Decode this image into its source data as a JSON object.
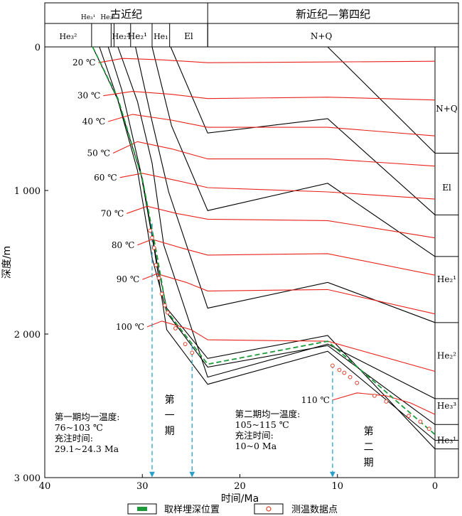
{
  "chart_data": {
    "type": "line",
    "title": "",
    "xlabel": "时间/Ma",
    "ylabel": "深度/m",
    "xlim": [
      40,
      0
    ],
    "ylim": [
      3000,
      0
    ],
    "x_ticks": [
      {
        "v": 40,
        "label": "40"
      },
      {
        "v": 30,
        "label": "30"
      },
      {
        "v": 20,
        "label": "20"
      },
      {
        "v": 10,
        "label": "10"
      },
      {
        "v": 0,
        "label": "0"
      }
    ],
    "y_ticks": [
      {
        "v": 0,
        "label": "0"
      },
      {
        "v": 1000,
        "label": "1 000"
      },
      {
        "v": 2000,
        "label": "2 000"
      },
      {
        "v": 3000,
        "label": "3 000"
      }
    ],
    "periods": [
      {
        "label": "古近纪",
        "x_from": 40,
        "x_to": 23.3
      },
      {
        "label": "新近纪—第四纪",
        "x_from": 23.3,
        "x_to": 0
      }
    ],
    "formations": [
      {
        "label": "He₃¹",
        "x_from": 36.5,
        "x_to": 34.6
      },
      {
        "label": "He₂³",
        "x_from": 33.8,
        "x_to": 33.3
      },
      {
        "label": "He₂¹",
        "x_from": 32.0,
        "x_to": 29.0
      },
      {
        "label": "El",
        "x_from": 27.2,
        "x_to": 23.3
      },
      {
        "label": "N+Q",
        "x_from": 23.3,
        "x_to": 0
      }
    ],
    "formations_sub": [
      {
        "label": "He₃²",
        "x_from": 40,
        "x_to": 35.2
      },
      {
        "label": "He₂²",
        "x_from": 33.2,
        "x_to": 31.2
      },
      {
        "label": "He₁",
        "x_from": 29.0,
        "x_to": 27.2
      }
    ],
    "formation_dividers": [
      40,
      35.2,
      33.2,
      32.9,
      31.2,
      29.0,
      27.2,
      23.3
    ],
    "right_formation_labels": [
      {
        "label": "N+Q",
        "depth": 430
      },
      {
        "label": "El",
        "depth": 980
      },
      {
        "label": "He₂¹",
        "depth": 1620
      },
      {
        "label": "He₂²",
        "depth": 2150
      },
      {
        "label": "He₃³",
        "depth": 2500
      },
      {
        "label": "He₃¹",
        "depth": 2740
      }
    ],
    "burial_curves": [
      {
        "x": [
          35.1,
          32.5,
          30.0,
          28.5,
          27.5,
          23.3,
          11,
          0
        ],
        "y": [
          0,
          370,
          920,
          1500,
          1820,
          2170,
          2010,
          2800
        ]
      },
      {
        "x": [
          34.4,
          32.6,
          30.5,
          29.0,
          27.5,
          23.3,
          11,
          0
        ],
        "y": [
          0,
          350,
          860,
          1470,
          1850,
          2230,
          2080,
          2630
        ]
      },
      {
        "x": [
          33.5,
          32.1,
          30.2,
          28.8,
          27.5,
          23.3,
          11,
          0
        ],
        "y": [
          0,
          300,
          860,
          1400,
          1970,
          2350,
          2120,
          2740
        ]
      },
      {
        "x": [
          32.5,
          30.5,
          29.0,
          27.8,
          23.3,
          11,
          0
        ],
        "y": [
          0,
          380,
          810,
          1380,
          2300,
          2070,
          2450
        ]
      },
      {
        "x": [
          30.7,
          29.0,
          27.3,
          23.3,
          11,
          0
        ],
        "y": [
          0,
          520,
          1010,
          1820,
          1640,
          1920
        ]
      },
      {
        "x": [
          29.0,
          27.0,
          23.3,
          11,
          0
        ],
        "y": [
          0,
          550,
          1140,
          950,
          1460
        ]
      },
      {
        "x": [
          27.1,
          23.3,
          11,
          0
        ],
        "y": [
          0,
          600,
          500,
          1170
        ]
      },
      {
        "x": [
          11,
          0
        ],
        "y": [
          0,
          740
        ]
      }
    ],
    "isotherms": [
      {
        "label": "20 ℃",
        "x": [
          34.5,
          32,
          28,
          23.3,
          11,
          0
        ],
        "y": [
          110,
          80,
          90,
          110,
          105,
          100
        ]
      },
      {
        "label": "30 ℃",
        "x": [
          34.0,
          31,
          27,
          23.3,
          11,
          0
        ],
        "y": [
          340,
          310,
          330,
          360,
          350,
          370
        ]
      },
      {
        "label": "40 ℃",
        "x": [
          33.5,
          31,
          27,
          23.3,
          11,
          0
        ],
        "y": [
          520,
          470,
          510,
          560,
          560,
          620
        ]
      },
      {
        "label": "50 ℃",
        "x": [
          33.0,
          30.5,
          27,
          23.3,
          11,
          0
        ],
        "y": [
          740,
          660,
          710,
          780,
          780,
          830
        ]
      },
      {
        "label": "60 ℃",
        "x": [
          32.3,
          30,
          26.5,
          23.3,
          11,
          0
        ],
        "y": [
          910,
          880,
          930,
          980,
          1010,
          1060
        ]
      },
      {
        "label": "70 ℃",
        "x": [
          31.6,
          29.5,
          26.5,
          23.3,
          11,
          0
        ],
        "y": [
          1160,
          1110,
          1160,
          1200,
          1210,
          1330
        ]
      },
      {
        "label": "80 ℃",
        "x": [
          30.5,
          29,
          26,
          23.3,
          11,
          0
        ],
        "y": [
          1380,
          1340,
          1400,
          1450,
          1440,
          1590
        ]
      },
      {
        "label": "90 ℃",
        "x": [
          30.0,
          28.5,
          25.5,
          23.3,
          11,
          0
        ],
        "y": [
          1620,
          1580,
          1640,
          1700,
          1690,
          1860
        ]
      },
      {
        "label": "100 ℃",
        "x": [
          29.5,
          28,
          25,
          23.3,
          11,
          0
        ],
        "y": [
          1950,
          1910,
          1970,
          2040,
          2050,
          2260
        ]
      },
      {
        "label": "110 ℃",
        "x": [
          10.5,
          8,
          5,
          2.5,
          0
        ],
        "y": [
          2460,
          2410,
          2430,
          2480,
          2560
        ]
      }
    ],
    "sampling_depth_position": {
      "x": [
        35.1,
        32.5,
        30.0,
        28.5,
        27.5,
        23.3,
        11,
        0
      ],
      "y": [
        0,
        360,
        920,
        1450,
        1840,
        2210,
        2050,
        2700
      ]
    },
    "temp_data_points": {
      "x": [
        29.2,
        29.0,
        28.8,
        28.6,
        28.3,
        28.0,
        27.7,
        27.4,
        26.6,
        25.6,
        24.9,
        10.5,
        9.8,
        9.3,
        8.7,
        8.0,
        6.2,
        5.0,
        2.7,
        1.5,
        0.6
      ],
      "y": [
        1280,
        1330,
        1400,
        1520,
        1610,
        1720,
        1800,
        1850,
        1960,
        2070,
        2130,
        2220,
        2250,
        2270,
        2300,
        2340,
        2430,
        2470,
        2570,
        2610,
        2660
      ]
    },
    "charge_arrows": [
      {
        "x": 29.0,
        "y_from": 1230,
        "y_to": 2990
      },
      {
        "x": 24.9,
        "y_from": 2080,
        "y_to": 2990
      },
      {
        "x": 10.5,
        "y_from": 2210,
        "y_to": 2990
      }
    ],
    "phase_labels": [
      {
        "text": "第一期",
        "x": 27.2,
        "depth": 2480
      },
      {
        "text": "第二期",
        "x": 6.8,
        "depth": 2700
      }
    ],
    "annotations": [
      {
        "lines": [
          "第一期均一温度:",
          "76~103 ℃",
          "充注时间:",
          "29.1~24.3 Ma"
        ],
        "x": 39.0,
        "depth": 2600
      },
      {
        "lines": [
          "第二期均一温度:",
          "105~115 ℃",
          "充注时间:",
          "10~0 Ma"
        ],
        "x": 20.5,
        "depth": 2580
      }
    ],
    "legend": {
      "items": [
        {
          "label": "取样埋深位置",
          "symbol": "green-bar",
          "color": "#1d9a3a"
        },
        {
          "label": "测温数据点",
          "symbol": "red-circle",
          "color": "#e0402a"
        }
      ],
      "position": "bottom"
    },
    "colors": {
      "burial": "#000000",
      "isotherm": "#e8221b",
      "sample": "#1d9a3a",
      "point": "#e0402a",
      "arrow": "#2aa0c8"
    }
  }
}
